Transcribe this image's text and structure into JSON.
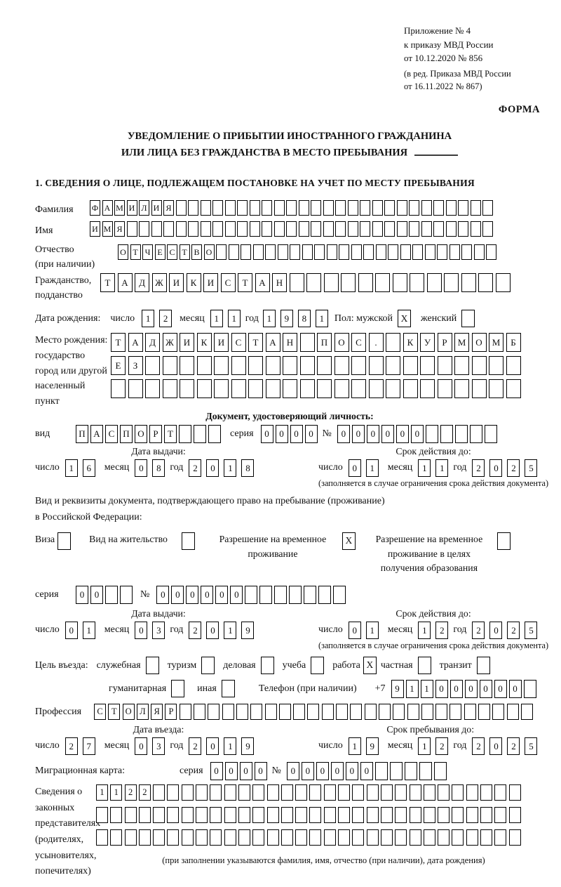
{
  "meta": {
    "appendix_lines": [
      "Приложение № 4",
      "к приказу МВД России",
      "от 10.12.2020 № 856"
    ],
    "amendment_lines": [
      "(в ред. Приказа МВД России",
      "от 16.11.2022 № 867)"
    ],
    "form_label": "ФОРМА"
  },
  "title": {
    "line1": "УВЕДОМЛЕНИЕ О ПРИБЫТИИ ИНОСТРАННОГО ГРАЖДАНИНА",
    "line2": "ИЛИ ЛИЦА БЕЗ ГРАЖДАНСТВА В МЕСТО ПРЕБЫВАНИЯ"
  },
  "section1_heading": "1. СВЕДЕНИЯ О ЛИЦЕ, ПОДЛЕЖАЩЕМ ПОСТАНОВКЕ НА УЧЕТ ПО МЕСТУ ПРЕБЫВАНИЯ",
  "date_labels": {
    "day": "число",
    "month": "месяц",
    "year": "год"
  },
  "surname": {
    "label": "Фамилия",
    "value": "ФАМИЛИЯ"
  },
  "given_name": {
    "label": "Имя",
    "value": "ИМЯ"
  },
  "patronymic": {
    "label": "Отчество",
    "label2": "(при наличии)",
    "value": "ОТЧЕСТВО"
  },
  "citizenship": {
    "label": "Гражданство,",
    "label2": "подданство",
    "value": "ТАДЖИКИСТАН"
  },
  "birth_date": {
    "label": "Дата рождения:",
    "day": "12",
    "month": "11",
    "year": "1981",
    "sex_label": "Пол: мужской",
    "male_mark": "X",
    "female_label": "женский",
    "female_mark": ""
  },
  "birth_place": {
    "label1": "Место рождения:",
    "label2": "государство",
    "label3": "город или другой",
    "label4": "населенный пункт",
    "line1": "ТАДЖИКИСТАН ПОС. КУРМОМБ",
    "line2": "ЕЗ",
    "line3": ""
  },
  "identity_doc": {
    "heading": "Документ, удостоверяющий личность:",
    "kind_label": "вид",
    "kind": "ПАСПОРТ",
    "series_label": "серия",
    "series": "0000",
    "number_label": "№",
    "number": "000000",
    "issue": {
      "heading": "Дата выдачи:",
      "day": "16",
      "month": "08",
      "year": "2018"
    },
    "valid": {
      "heading": "Срок действия до:",
      "day": "01",
      "month": "11",
      "year": "2025"
    },
    "valid_note": "(заполняется в случае ограничения срока действия документа)"
  },
  "residence_doc": {
    "intro1": "Вид и реквизиты документа, подтверждающего право на пребывание (проживание)",
    "intro2": "в Российской Федерации:",
    "options": [
      {
        "label": "Виза",
        "mark": ""
      },
      {
        "label": "Вид на жительство",
        "mark": ""
      },
      {
        "label": "Разрешение на временное проживание",
        "mark": "X"
      },
      {
        "label": "Разрешение на временное проживание в целях получения образования",
        "mark": ""
      }
    ],
    "series_label": "серия",
    "series": "00",
    "number_label": "№",
    "number": "000000",
    "issue": {
      "heading": "Дата выдачи:",
      "day": "01",
      "month": "03",
      "year": "2019"
    },
    "valid": {
      "heading": "Срок действия до:",
      "day": "01",
      "month": "12",
      "year": "2025"
    },
    "valid_note": "(заполняется в случае ограничения срока действия документа)"
  },
  "visit_purpose": {
    "label": "Цель въезда:",
    "options_row1": [
      {
        "label": "служебная",
        "mark": ""
      },
      {
        "label": "туризм",
        "mark": ""
      },
      {
        "label": "деловая",
        "mark": ""
      },
      {
        "label": "учеба",
        "mark": ""
      },
      {
        "label": "работа",
        "mark": "X"
      },
      {
        "label": "частная",
        "mark": ""
      },
      {
        "label": "транзит",
        "mark": ""
      }
    ],
    "options_row2": [
      {
        "label": "гуманитарная",
        "mark": ""
      },
      {
        "label": "иная",
        "mark": ""
      }
    ],
    "phone_label": "Телефон (при наличии)",
    "phone_prefix": "+7",
    "phone": "911000000"
  },
  "profession": {
    "label": "Профессия",
    "value": "СТОЛЯР"
  },
  "entry": {
    "issue": {
      "heading": "Дата въезда:",
      "day": "27",
      "month": "03",
      "year": "2019"
    },
    "valid": {
      "heading": "Срок пребывания до:",
      "day": "19",
      "month": "12",
      "year": "2025"
    }
  },
  "migration_card": {
    "label": "Миграционная карта:",
    "series_label": "серия",
    "series": "0000",
    "number_label": "№",
    "number": "000000"
  },
  "legal_reps": {
    "label_lines": [
      "Сведения о",
      "законных",
      "представителях",
      "(родителях,",
      "усыновителях,",
      "попечителях)"
    ],
    "line1": "1122",
    "line2": "",
    "line3": "",
    "note": "(при заполнении указываются фамилия, имя, отчество (при наличии), дата рождения)"
  }
}
